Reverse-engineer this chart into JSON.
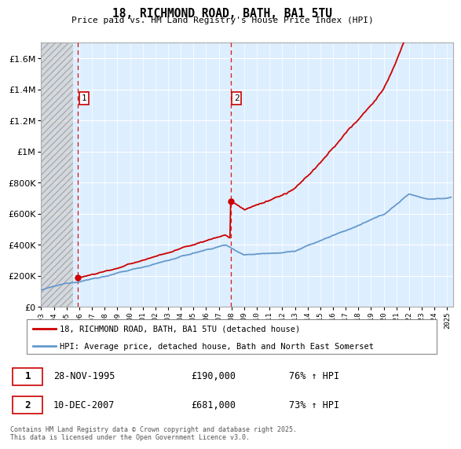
{
  "title": "18, RICHMOND ROAD, BATH, BA1 5TU",
  "subtitle": "Price paid vs. HM Land Registry's House Price Index (HPI)",
  "legend_line1": "18, RICHMOND ROAD, BATH, BA1 5TU (detached house)",
  "legend_line2": "HPI: Average price, detached house, Bath and North East Somerset",
  "footnote": "Contains HM Land Registry data © Crown copyright and database right 2025.\nThis data is licensed under the Open Government Licence v3.0.",
  "hpi_color": "#6699cc",
  "price_color": "#cc0000",
  "grid_color": "#cccccc",
  "chart_bg_color": "#ddeeff",
  "hatch_color": "#c8c8c8",
  "ylim": [
    0,
    1700000
  ],
  "yticks": [
    0,
    200000,
    400000,
    600000,
    800000,
    1000000,
    1200000,
    1400000,
    1600000
  ],
  "ytick_labels": [
    "£0",
    "£200K",
    "£400K",
    "£600K",
    "£800K",
    "£1M",
    "£1.2M",
    "£1.4M",
    "£1.6M"
  ],
  "sale1_x": 1995.91,
  "sale1_y": 190000,
  "sale2_x": 2007.94,
  "sale2_y": 681000,
  "xmin": 1993.0,
  "xmax": 2025.5,
  "hatch_end": 1995.5
}
